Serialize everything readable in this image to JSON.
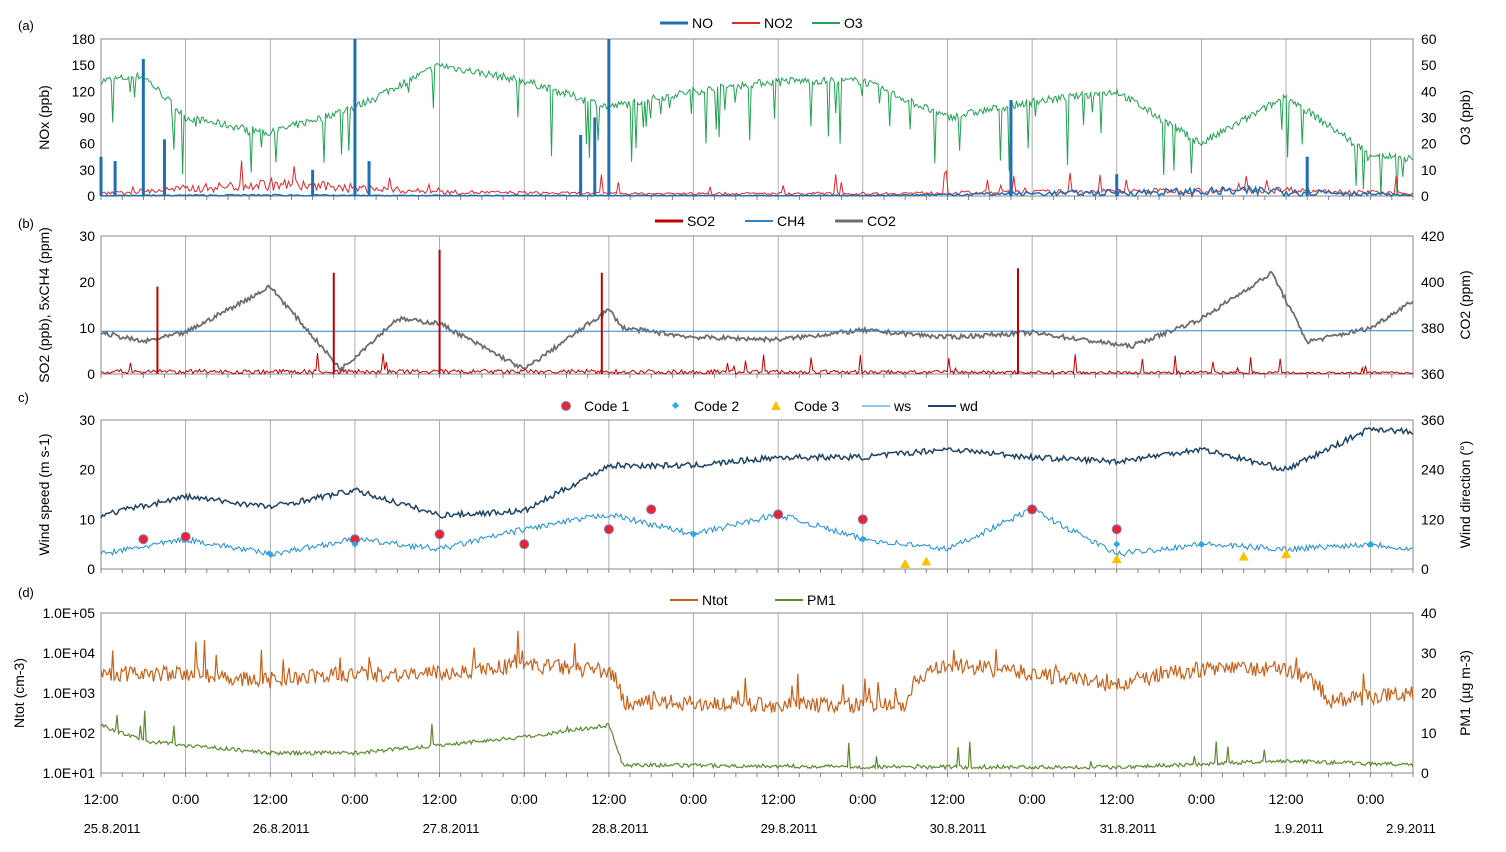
{
  "colors": {
    "NO": "#1f6fb4",
    "NO2": "#e3272b",
    "O3": "#22a352",
    "SO2": "#c00000",
    "CH4": "#2e86c1",
    "CO2": "#6e6e6e",
    "code1_fill": "#e8262c",
    "code1_edge": "#7b7bd0",
    "code2": "#2ea8e0",
    "code3": "#ffc000",
    "ws": "#1b8fd6",
    "wd": "#1f4466",
    "Ntot": "#c8621b",
    "PM1": "#5c8a2e",
    "grid": "#9a9a9a"
  },
  "x_axis": {
    "time_labels": [
      "12:00",
      "0:00",
      "12:00",
      "0:00",
      "12:00",
      "0:00",
      "12:00",
      "0:00",
      "12:00",
      "0:00",
      "12:00",
      "0:00",
      "12:00",
      "0:00",
      "12:00",
      "0:00"
    ],
    "date_labels": [
      "25.8.2011",
      "26.8.2011",
      "27.8.2011",
      "28.8.2011",
      "29.8.2011",
      "30.8.2011",
      "31.8.2011",
      "1.9.2011",
      "2.9.2011"
    ]
  },
  "chart_data": [
    {
      "panel": "(a)",
      "type": "line",
      "left_axis": {
        "label": "NOx (ppb)",
        "ylim": [
          0,
          180
        ],
        "ticks": [
          "0",
          "30",
          "60",
          "90",
          "120",
          "150",
          "180"
        ]
      },
      "right_axis": {
        "label": "O3 (ppb)",
        "ylim": [
          0,
          60
        ],
        "ticks": [
          "0",
          "10",
          "20",
          "30",
          "40",
          "50",
          "60"
        ]
      },
      "legend": [
        "NO",
        "NO2",
        "O3"
      ],
      "series": [
        {
          "name": "O3",
          "axis": "right",
          "x": [
            "2011-08-25 12:00",
            "2011-08-25 18:00",
            "2011-08-26 00:00",
            "2011-08-26 12:00",
            "2011-08-27 00:00",
            "2011-08-27 12:00",
            "2011-08-28 00:00",
            "2011-08-28 12:00",
            "2011-08-29 00:00",
            "2011-08-29 12:00",
            "2011-08-30 00:00",
            "2011-08-30 12:00",
            "2011-08-31 00:00",
            "2011-08-31 12:00",
            "2011-09-01 00:00",
            "2011-09-01 12:00",
            "2011-09-02 00:00",
            "2011-09-02 06:00"
          ],
          "values": [
            44,
            46,
            30,
            24,
            34,
            50,
            44,
            34,
            40,
            44,
            44,
            30,
            36,
            40,
            20,
            38,
            16,
            14
          ]
        },
        {
          "name": "NO2",
          "axis": "left",
          "x": [
            "2011-08-25 12:00",
            "2011-08-26 12:00",
            "2011-08-27 00:00",
            "2011-08-27 12:00",
            "2011-08-28 12:00",
            "2011-08-30 00:00",
            "2011-09-01 12:00",
            "2011-09-02 06:00"
          ],
          "values": [
            3,
            15,
            10,
            5,
            3,
            3,
            8,
            3
          ]
        },
        {
          "name": "NO",
          "axis": "left",
          "x": [
            "2011-08-25 12:00",
            "2011-08-26 12:00",
            "2011-08-27 00:00",
            "2011-08-28 12:00",
            "2011-08-30 00:00",
            "2011-09-01 12:00",
            "2011-09-02 06:00"
          ],
          "values": [
            1,
            2,
            1,
            1,
            1,
            12,
            1
          ],
          "spikes": [
            {
              "x": "2011-08-25 12:00",
              "y": 45
            },
            {
              "x": "2011-08-25 14:00",
              "y": 40
            },
            {
              "x": "2011-08-25 18:00",
              "y": 157
            },
            {
              "x": "2011-08-25 21:00",
              "y": 65
            },
            {
              "x": "2011-08-26 18:00",
              "y": 30
            },
            {
              "x": "2011-08-27 00:00",
              "y": 180
            },
            {
              "x": "2011-08-27 02:00",
              "y": 40
            },
            {
              "x": "2011-08-28 08:00",
              "y": 70
            },
            {
              "x": "2011-08-28 10:00",
              "y": 90
            },
            {
              "x": "2011-08-28 12:00",
              "y": 180
            },
            {
              "x": "2011-08-30 21:00",
              "y": 110
            },
            {
              "x": "2011-08-31 12:00",
              "y": 25
            },
            {
              "x": "2011-09-01 15:00",
              "y": 45
            }
          ]
        }
      ]
    },
    {
      "panel": "(b)",
      "type": "line",
      "left_axis": {
        "label": "SO2 (ppb), 5xCH4 (ppm)",
        "ylim": [
          0,
          30
        ],
        "ticks": [
          "0",
          "10",
          "20",
          "30"
        ]
      },
      "right_axis": {
        "label": "CO2 (ppm)",
        "ylim": [
          360,
          420
        ],
        "ticks": [
          "360",
          "380",
          "400",
          "420"
        ]
      },
      "legend": [
        "SO2",
        "CH4",
        "CO2"
      ],
      "series": [
        {
          "name": "CO2",
          "axis": "right",
          "x": [
            "2011-08-25 12:00",
            "2011-08-25 18:00",
            "2011-08-26 00:00",
            "2011-08-26 12:00",
            "2011-08-26 22:00",
            "2011-08-27 06:00",
            "2011-08-27 12:00",
            "2011-08-28 00:00",
            "2011-08-28 12:00",
            "2011-08-28 14:00",
            "2011-08-29 00:00",
            "2011-08-29 12:00",
            "2011-08-30 00:00",
            "2011-08-30 12:00",
            "2011-08-31 00:00",
            "2011-08-31 14:00",
            "2011-09-01 00:00",
            "2011-09-01 10:00",
            "2011-09-01 15:00",
            "2011-09-02 00:00",
            "2011-09-02 06:00"
          ],
          "values": [
            378,
            374,
            378,
            398,
            362,
            384,
            382,
            362,
            388,
            380,
            376,
            375,
            379,
            376,
            378,
            372,
            384,
            404,
            374,
            380,
            392
          ]
        },
        {
          "name": "CH4",
          "axis": "left",
          "x": [
            "2011-08-25 12:00",
            "2011-08-28 12:00",
            "2011-08-31 14:00",
            "2011-09-01 00:00",
            "2011-09-02 06:00"
          ],
          "values": [
            9.3,
            9.3,
            9.3,
            9.4,
            9.4
          ]
        },
        {
          "name": "SO2",
          "axis": "left",
          "x": [
            "2011-08-25 12:00",
            "2011-08-26 12:00",
            "2011-08-28 12:00",
            "2011-09-02 06:00"
          ],
          "values": [
            1,
            1,
            1,
            0.5
          ],
          "spikes": [
            {
              "x": "2011-08-25 20:00",
              "y": 19
            },
            {
              "x": "2011-08-26 21:00",
              "y": 22
            },
            {
              "x": "2011-08-27 12:00",
              "y": 27
            },
            {
              "x": "2011-08-28 11:00",
              "y": 22
            },
            {
              "x": "2011-08-30 22:00",
              "y": 23
            }
          ]
        }
      ]
    },
    {
      "panel": "(c)",
      "type": "line",
      "left_axis": {
        "label": "Wind speed (m s-1)",
        "ylim": [
          0,
          30
        ],
        "ticks": [
          "0",
          "10",
          "20",
          "30"
        ]
      },
      "right_axis": {
        "label": "Wind direction (°)",
        "ylim": [
          0,
          360
        ],
        "ticks": [
          "0",
          "120",
          "240",
          "360"
        ]
      },
      "legend": [
        "Code 1",
        "Code 2",
        "Code 3",
        "ws",
        "wd"
      ],
      "series": [
        {
          "name": "wd",
          "axis": "right",
          "x": [
            "2011-08-25 12:00",
            "2011-08-26 00:00",
            "2011-08-26 12:00",
            "2011-08-27 00:00",
            "2011-08-27 12:00",
            "2011-08-28 00:00",
            "2011-08-28 12:00",
            "2011-08-29 00:00",
            "2011-08-29 12:00",
            "2011-08-30 00:00",
            "2011-08-30 12:00",
            "2011-08-31 00:00",
            "2011-08-31 12:00",
            "2011-09-01 00:00",
            "2011-09-01 12:00",
            "2011-09-02 00:00",
            "2011-09-02 06:00"
          ],
          "values": [
            130,
            175,
            150,
            190,
            130,
            140,
            250,
            250,
            270,
            270,
            290,
            270,
            260,
            290,
            240,
            340,
            330
          ]
        },
        {
          "name": "ws",
          "axis": "left",
          "x": [
            "2011-08-25 12:00",
            "2011-08-26 00:00",
            "2011-08-26 12:00",
            "2011-08-27 00:00",
            "2011-08-27 12:00",
            "2011-08-28 00:00",
            "2011-08-28 12:00",
            "2011-08-29 00:00",
            "2011-08-29 12:00",
            "2011-08-30 00:00",
            "2011-08-30 12:00",
            "2011-08-31 00:00",
            "2011-08-31 12:00",
            "2011-09-01 00:00",
            "2011-09-01 12:00",
            "2011-09-02 00:00",
            "2011-09-02 06:00"
          ],
          "values": [
            3,
            6,
            3,
            6,
            4,
            8,
            11,
            7,
            11,
            6,
            4,
            12,
            3,
            5,
            4,
            5,
            4
          ]
        },
        {
          "name": "Code 1",
          "marker": "circle",
          "x": [
            "2011-08-25 18:00",
            "2011-08-26 00:00",
            "2011-08-27 00:00",
            "2011-08-27 12:00",
            "2011-08-28 00:00",
            "2011-08-28 12:00",
            "2011-08-28 18:00",
            "2011-08-29 12:00",
            "2011-08-30 00:00",
            "2011-08-31 00:00",
            "2011-08-31 12:00"
          ],
          "values": [
            6,
            6.5,
            6,
            7,
            5,
            8,
            12,
            11,
            10,
            12,
            8
          ]
        },
        {
          "name": "Code 2",
          "marker": "diamond",
          "x": [
            "2011-08-26 12:00",
            "2011-08-27 00:00",
            "2011-08-29 00:00",
            "2011-08-30 00:00",
            "2011-08-31 12:00",
            "2011-09-01 00:00",
            "2011-09-02 00:00"
          ],
          "values": [
            3,
            5,
            7,
            6,
            5,
            5,
            5
          ]
        },
        {
          "name": "Code 3",
          "marker": "triangle",
          "x": [
            "2011-08-30 06:00",
            "2011-08-30 09:00",
            "2011-08-31 12:00",
            "2011-09-01 06:00",
            "2011-09-01 12:00"
          ],
          "values": [
            1,
            1.5,
            2,
            2.5,
            3
          ]
        }
      ]
    },
    {
      "panel": "(d)",
      "type": "line",
      "left_axis": {
        "label": "Ntot (cm-3)",
        "scale": "log",
        "ylim": [
          10,
          100000
        ],
        "ticks": [
          "1.0E+01",
          "1.0E+02",
          "1.0E+03",
          "1.0E+04",
          "1.0E+05"
        ]
      },
      "right_axis": {
        "label": "PM1 (µg m-3)",
        "ylim": [
          0,
          40
        ],
        "ticks": [
          "0",
          "10",
          "20",
          "30",
          "40"
        ]
      },
      "legend": [
        "Ntot",
        "PM1"
      ],
      "series": [
        {
          "name": "Ntot",
          "axis": "left",
          "x": [
            "2011-08-25 12:00",
            "2011-08-26 00:00",
            "2011-08-26 12:00",
            "2011-08-27 00:00",
            "2011-08-27 12:00",
            "2011-08-28 00:00",
            "2011-08-28 12:00",
            "2011-08-28 14:00",
            "2011-08-29 12:00",
            "2011-08-30 06:00",
            "2011-08-30 12:00",
            "2011-08-31 00:00",
            "2011-08-31 12:00",
            "2011-09-01 00:00",
            "2011-09-01 12:00",
            "2011-09-01 18:00",
            "2011-09-02 06:00"
          ],
          "values": [
            3000,
            3000,
            2000,
            3000,
            3000,
            5000,
            3500,
            600,
            500,
            500,
            5000,
            3000,
            1500,
            4000,
            4000,
            600,
            1000
          ]
        },
        {
          "name": "PM1",
          "axis": "right",
          "x": [
            "2011-08-25 12:00",
            "2011-08-25 18:00",
            "2011-08-26 00:00",
            "2011-08-26 12:00",
            "2011-08-27 00:00",
            "2011-08-27 12:00",
            "2011-08-28 00:00",
            "2011-08-28 12:00",
            "2011-08-28 14:00",
            "2011-08-30 06:00",
            "2011-08-30 12:00",
            "2011-08-31 12:00",
            "2011-09-01 12:00",
            "2011-09-02 06:00"
          ],
          "values": [
            12,
            8,
            7,
            5,
            5,
            7,
            9,
            12,
            2,
            1.5,
            1.5,
            1.5,
            3,
            2
          ]
        }
      ]
    }
  ]
}
